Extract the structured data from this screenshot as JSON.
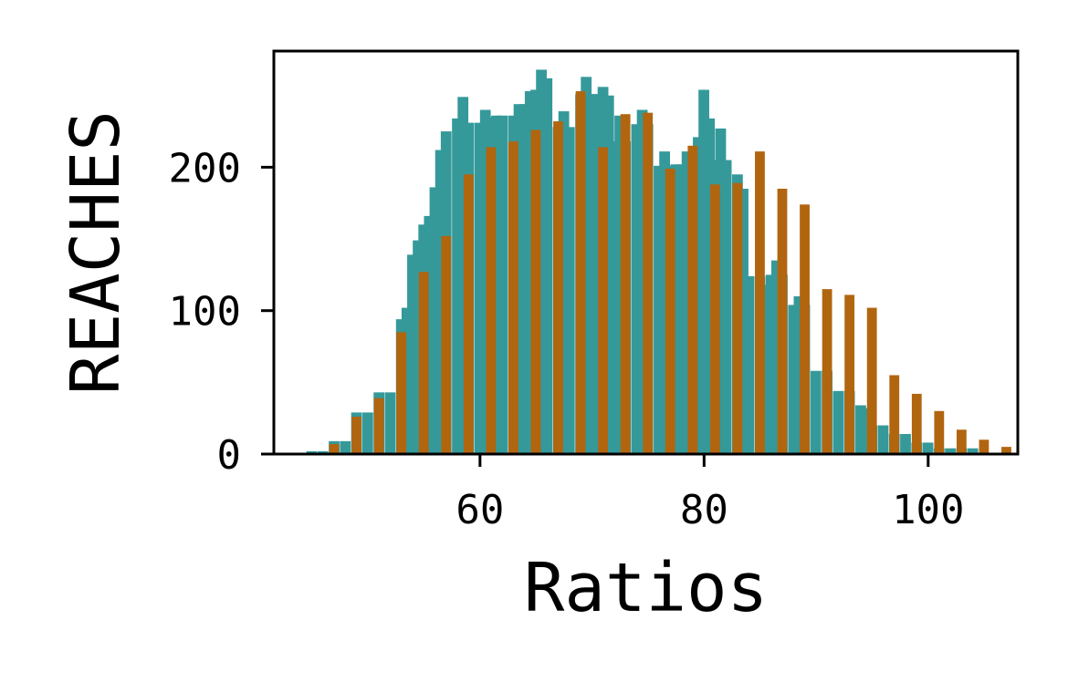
{
  "chart_data": {
    "type": "bar",
    "title": "",
    "xlabel": "Ratios",
    "ylabel": "REACHES",
    "xlim": [
      41.6,
      108.0
    ],
    "ylim": [
      0,
      281
    ],
    "xticks": [
      60,
      80,
      100
    ],
    "yticks": [
      0,
      100,
      200
    ],
    "grid": false,
    "legend": "none",
    "colors": {
      "back": "#35999a",
      "front": "#b1650f"
    },
    "series": [
      {
        "color": "#35999a",
        "points": [
          [
            45,
            2
          ],
          [
            46,
            2
          ],
          [
            47,
            9
          ],
          [
            48,
            9
          ],
          [
            49,
            29
          ],
          [
            50,
            29
          ],
          [
            51,
            43
          ],
          [
            52,
            43
          ],
          [
            53,
            94
          ],
          [
            53.5,
            102
          ],
          [
            54,
            139
          ],
          [
            54.5,
            149
          ],
          [
            55,
            160
          ],
          [
            55.5,
            166
          ],
          [
            56,
            186
          ],
          [
            56.5,
            212
          ],
          [
            57,
            225
          ],
          [
            58,
            234
          ],
          [
            58.5,
            249
          ],
          [
            59,
            231
          ],
          [
            60,
            231
          ],
          [
            60.5,
            240
          ],
          [
            61,
            235
          ],
          [
            61.5,
            236
          ],
          [
            62,
            236
          ],
          [
            63,
            236
          ],
          [
            63.5,
            244
          ],
          [
            64,
            244
          ],
          [
            64.5,
            253
          ],
          [
            65,
            254
          ],
          [
            65.5,
            268
          ],
          [
            66,
            262
          ],
          [
            67,
            228
          ],
          [
            67.5,
            239
          ],
          [
            68,
            228
          ],
          [
            69,
            251
          ],
          [
            69.5,
            263
          ],
          [
            70,
            251
          ],
          [
            70.5,
            251
          ],
          [
            71,
            256
          ],
          [
            71.5,
            250
          ],
          [
            72,
            218
          ],
          [
            72.5,
            236
          ],
          [
            73,
            218
          ],
          [
            74,
            230
          ],
          [
            74.5,
            240
          ],
          [
            75,
            230
          ],
          [
            76,
            201
          ],
          [
            76.5,
            211
          ],
          [
            77,
            201
          ],
          [
            77.5,
            202
          ],
          [
            78,
            202
          ],
          [
            78.5,
            211
          ],
          [
            79,
            204
          ],
          [
            79.5,
            221
          ],
          [
            80,
            254
          ],
          [
            80.5,
            234
          ],
          [
            81,
            205
          ],
          [
            81.5,
            227
          ],
          [
            82,
            205
          ],
          [
            83,
            195
          ],
          [
            83.5,
            185
          ],
          [
            84,
            124
          ],
          [
            85,
            124
          ],
          [
            85.5,
            118
          ],
          [
            86,
            125
          ],
          [
            86.5,
            135
          ],
          [
            87,
            125
          ],
          [
            88,
            104
          ],
          [
            88.5,
            110
          ],
          [
            89,
            104
          ],
          [
            90,
            58
          ],
          [
            91,
            58
          ],
          [
            92,
            44
          ],
          [
            93,
            44
          ],
          [
            94,
            34
          ],
          [
            94.5,
            32
          ],
          [
            95,
            20
          ],
          [
            96,
            20
          ],
          [
            97,
            14
          ],
          [
            98,
            14
          ],
          [
            99,
            8
          ],
          [
            100,
            8
          ],
          [
            101,
            4
          ],
          [
            102,
            4
          ],
          [
            103,
            4
          ],
          [
            104,
            4
          ]
        ]
      },
      {
        "color": "#b1650f",
        "points": [
          [
            47,
            7
          ],
          [
            49,
            26
          ],
          [
            51,
            39
          ],
          [
            53,
            85
          ],
          [
            55,
            127
          ],
          [
            57,
            152
          ],
          [
            59,
            195
          ],
          [
            61,
            214
          ],
          [
            63,
            218
          ],
          [
            65,
            226
          ],
          [
            67,
            232
          ],
          [
            69,
            253
          ],
          [
            71,
            214
          ],
          [
            73,
            237
          ],
          [
            75,
            238
          ],
          [
            77,
            199
          ],
          [
            79,
            215
          ],
          [
            81,
            188
          ],
          [
            83,
            189
          ],
          [
            85,
            211
          ],
          [
            87,
            185
          ],
          [
            89,
            174
          ],
          [
            91,
            115
          ],
          [
            93,
            111
          ],
          [
            95,
            102
          ],
          [
            97,
            55
          ],
          [
            99,
            42
          ],
          [
            101,
            30
          ],
          [
            103,
            17
          ],
          [
            105,
            10
          ],
          [
            107,
            5
          ]
        ]
      }
    ]
  }
}
